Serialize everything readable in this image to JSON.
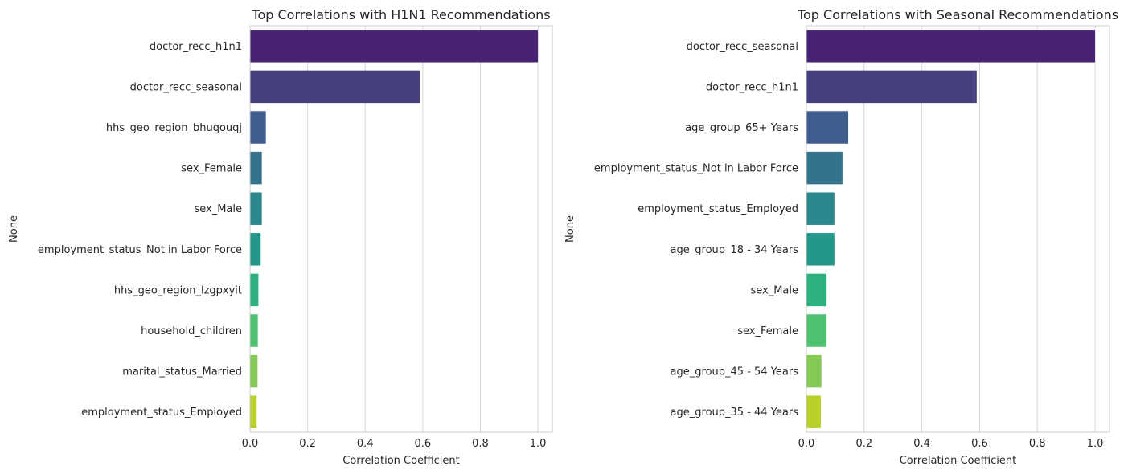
{
  "chart_data": [
    {
      "type": "bar",
      "orientation": "horizontal",
      "title": "Top Correlations with H1N1 Recommendations",
      "xlabel": "Correlation Coefficient",
      "ylabel": "None",
      "xlim": [
        0,
        1.05
      ],
      "xticks": [
        0.0,
        0.2,
        0.4,
        0.6,
        0.8,
        1.0
      ],
      "xtick_labels": [
        "0.0",
        "0.2",
        "0.4",
        "0.6",
        "0.8",
        "1.0"
      ],
      "grid": "vertical",
      "categories": [
        "doctor_recc_h1n1",
        "doctor_recc_seasonal",
        "hhs_geo_region_bhuqouqj",
        "sex_Female",
        "sex_Male",
        "employment_status_Not in Labor Force",
        "hhs_geo_region_lzgpxyit",
        "household_children",
        "marital_status_Married",
        "employment_status_Employed"
      ],
      "values": [
        1.0,
        0.59,
        0.055,
        0.041,
        0.041,
        0.037,
        0.029,
        0.027,
        0.026,
        0.023
      ],
      "colors": [
        "#482374",
        "#46417c",
        "#3f5e8d",
        "#34738e",
        "#2b888e",
        "#24978b",
        "#2eb07e",
        "#4fc06f",
        "#84c855",
        "#b9d02b"
      ]
    },
    {
      "type": "bar",
      "orientation": "horizontal",
      "title": "Top Correlations with Seasonal Recommendations",
      "xlabel": "Correlation Coefficient",
      "ylabel": "None",
      "xlim": [
        0,
        1.05
      ],
      "xticks": [
        0.0,
        0.2,
        0.4,
        0.6,
        0.8,
        1.0
      ],
      "xtick_labels": [
        "0.0",
        "0.2",
        "0.4",
        "0.6",
        "0.8",
        "1.0"
      ],
      "grid": "vertical",
      "categories": [
        "doctor_recc_seasonal",
        "doctor_recc_h1n1",
        "age_group_65+ Years",
        "employment_status_Not in Labor Force",
        "employment_status_Employed",
        "age_group_18 - 34 Years",
        "sex_Male",
        "sex_Female",
        "age_group_45 - 54 Years",
        "age_group_35 - 44 Years"
      ],
      "values": [
        1.0,
        0.59,
        0.145,
        0.125,
        0.097,
        0.097,
        0.07,
        0.07,
        0.052,
        0.05
      ],
      "colors": [
        "#482374",
        "#46417c",
        "#3f5e8d",
        "#34738e",
        "#2b888e",
        "#24978b",
        "#2eb07e",
        "#4fc06f",
        "#84c855",
        "#b9d02b"
      ]
    }
  ]
}
